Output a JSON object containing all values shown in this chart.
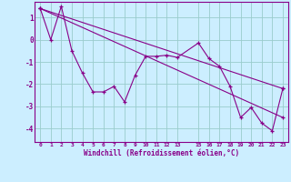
{
  "xlabel": "Windchill (Refroidissement éolien,°C)",
  "background_color": "#cceeff",
  "line_color": "#880088",
  "xlim": [
    -0.5,
    23.5
  ],
  "ylim": [
    -4.6,
    1.7
  ],
  "yticks": [
    -4,
    -3,
    -2,
    -1,
    0,
    1
  ],
  "xticks": [
    0,
    1,
    2,
    3,
    4,
    5,
    6,
    7,
    8,
    9,
    10,
    11,
    12,
    13,
    15,
    16,
    17,
    18,
    19,
    20,
    21,
    22,
    23
  ],
  "line1_x": [
    0,
    1,
    2,
    3,
    4,
    5,
    6,
    7,
    8,
    9,
    10,
    11,
    12,
    13,
    15,
    16,
    17,
    18,
    19,
    20,
    21,
    22,
    23
  ],
  "line1_y": [
    1.4,
    0.0,
    1.5,
    -0.5,
    -1.5,
    -2.35,
    -2.35,
    -2.1,
    -2.8,
    -1.6,
    -0.75,
    -0.75,
    -0.7,
    -0.8,
    -0.15,
    -0.85,
    -1.2,
    -2.1,
    -3.5,
    -3.05,
    -3.75,
    -4.1,
    -2.2
  ],
  "line2_x": [
    0,
    23
  ],
  "line2_y": [
    1.4,
    -2.2
  ],
  "line3_x": [
    0,
    23
  ],
  "line3_y": [
    1.4,
    -3.5
  ],
  "grid_color": "#99cccc",
  "marker": "+"
}
